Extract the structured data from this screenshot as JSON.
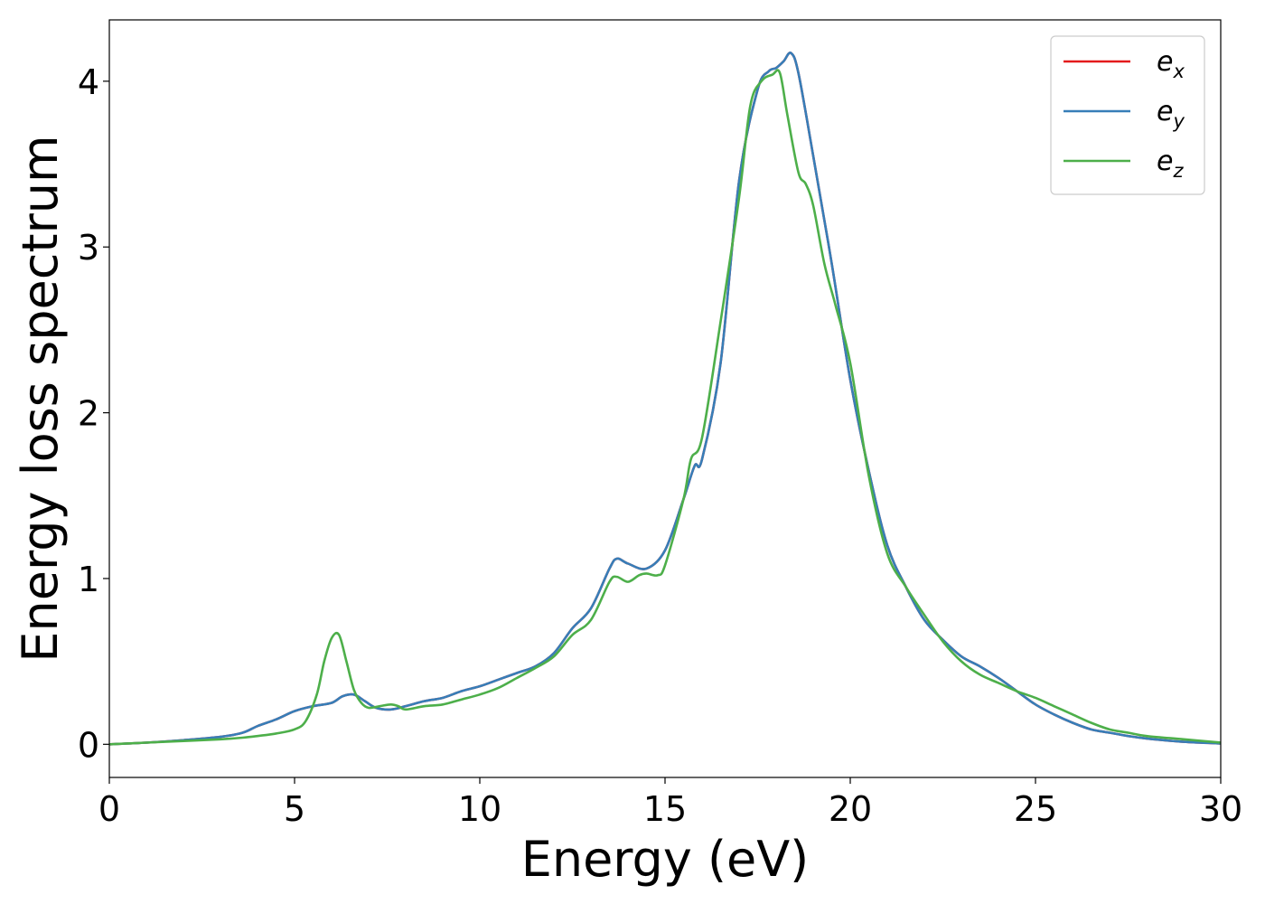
{
  "chart_data": {
    "type": "line",
    "title": "",
    "xlabel": "Energy (eV)",
    "ylabel": "Energy loss spectrum",
    "xlim": [
      0,
      30
    ],
    "ylim": [
      -0.2,
      4.37
    ],
    "xticks": [
      0,
      5,
      10,
      15,
      20,
      25,
      30
    ],
    "yticks": [
      0,
      1,
      2,
      3,
      4
    ],
    "grid": false,
    "legend_position": "top-right",
    "series": [
      {
        "name": "e_x",
        "legend": {
          "base": "e",
          "sub": "x"
        },
        "color": "#e41a1c",
        "x": [
          0,
          1,
          2,
          3,
          3.6,
          4,
          4.5,
          5,
          5.5,
          6,
          6.3,
          6.6,
          6.9,
          7.2,
          7.6,
          8,
          8.5,
          9,
          9.5,
          10,
          10.5,
          11,
          11.5,
          12,
          12.5,
          13,
          13.5,
          13.7,
          14,
          14.5,
          15,
          15.5,
          15.8,
          16,
          16.5,
          17,
          17.5,
          17.8,
          18,
          18.2,
          18.4,
          18.6,
          19,
          19.5,
          20,
          20.5,
          21,
          21.5,
          22,
          22.5,
          23,
          23.5,
          24,
          24.5,
          25,
          25.5,
          26,
          26.5,
          27,
          27.5,
          28,
          29,
          30
        ],
        "y": [
          0,
          0.01,
          0.025,
          0.045,
          0.07,
          0.11,
          0.15,
          0.2,
          0.23,
          0.25,
          0.29,
          0.3,
          0.26,
          0.22,
          0.21,
          0.23,
          0.26,
          0.28,
          0.32,
          0.35,
          0.39,
          0.43,
          0.47,
          0.55,
          0.7,
          0.82,
          1.06,
          1.12,
          1.09,
          1.06,
          1.17,
          1.48,
          1.68,
          1.72,
          2.3,
          3.4,
          3.95,
          4.06,
          4.08,
          4.12,
          4.17,
          4.05,
          3.55,
          2.9,
          2.2,
          1.65,
          1.2,
          0.95,
          0.75,
          0.63,
          0.53,
          0.47,
          0.4,
          0.32,
          0.24,
          0.18,
          0.13,
          0.09,
          0.07,
          0.05,
          0.035,
          0.015,
          0.005
        ]
      },
      {
        "name": "e_y",
        "legend": {
          "base": "e",
          "sub": "y"
        },
        "color": "#377eb8",
        "x": [
          0,
          1,
          2,
          3,
          3.6,
          4,
          4.5,
          5,
          5.5,
          6,
          6.3,
          6.6,
          6.9,
          7.2,
          7.6,
          8,
          8.5,
          9,
          9.5,
          10,
          10.5,
          11,
          11.5,
          12,
          12.5,
          13,
          13.5,
          13.7,
          14,
          14.5,
          15,
          15.5,
          15.8,
          16,
          16.5,
          17,
          17.5,
          17.8,
          18,
          18.2,
          18.4,
          18.6,
          19,
          19.5,
          20,
          20.5,
          21,
          21.5,
          22,
          22.5,
          23,
          23.5,
          24,
          24.5,
          25,
          25.5,
          26,
          26.5,
          27,
          27.5,
          28,
          29,
          30
        ],
        "y": [
          0,
          0.01,
          0.025,
          0.045,
          0.07,
          0.11,
          0.15,
          0.2,
          0.23,
          0.25,
          0.29,
          0.3,
          0.26,
          0.22,
          0.21,
          0.23,
          0.26,
          0.28,
          0.32,
          0.35,
          0.39,
          0.43,
          0.47,
          0.55,
          0.7,
          0.82,
          1.06,
          1.12,
          1.09,
          1.06,
          1.17,
          1.48,
          1.68,
          1.72,
          2.3,
          3.4,
          3.95,
          4.06,
          4.08,
          4.12,
          4.17,
          4.05,
          3.55,
          2.9,
          2.2,
          1.65,
          1.2,
          0.95,
          0.75,
          0.63,
          0.53,
          0.47,
          0.4,
          0.32,
          0.24,
          0.18,
          0.13,
          0.09,
          0.07,
          0.05,
          0.035,
          0.015,
          0.005
        ]
      },
      {
        "name": "e_z",
        "legend": {
          "base": "e",
          "sub": "z"
        },
        "color": "#4daf4a",
        "x": [
          0,
          1,
          2,
          3,
          3.6,
          4,
          4.5,
          5,
          5.3,
          5.6,
          5.8,
          6,
          6.2,
          6.4,
          6.6,
          6.8,
          7,
          7.3,
          7.6,
          7.8,
          8,
          8.5,
          9,
          9.5,
          10,
          10.5,
          11,
          11.5,
          12,
          12.5,
          13,
          13.5,
          13.7,
          14,
          14.3,
          14.5,
          14.8,
          15,
          15.5,
          15.7,
          16,
          16.5,
          17,
          17.3,
          17.6,
          17.9,
          18.1,
          18.3,
          18.6,
          18.8,
          19,
          19.3,
          19.6,
          20,
          20.5,
          21,
          21.5,
          22,
          22.5,
          23,
          23.5,
          24,
          24.5,
          25,
          25.5,
          26,
          26.5,
          27,
          27.5,
          28,
          29,
          30
        ],
        "y": [
          0,
          0.01,
          0.02,
          0.03,
          0.04,
          0.05,
          0.065,
          0.09,
          0.14,
          0.3,
          0.5,
          0.64,
          0.66,
          0.5,
          0.33,
          0.25,
          0.22,
          0.23,
          0.24,
          0.23,
          0.21,
          0.23,
          0.24,
          0.27,
          0.3,
          0.34,
          0.4,
          0.46,
          0.53,
          0.66,
          0.75,
          0.98,
          1.01,
          0.98,
          1.02,
          1.03,
          1.02,
          1.08,
          1.48,
          1.72,
          1.85,
          2.55,
          3.3,
          3.85,
          4.0,
          4.04,
          4.05,
          3.8,
          3.45,
          3.38,
          3.25,
          2.9,
          2.65,
          2.3,
          1.62,
          1.15,
          0.95,
          0.78,
          0.62,
          0.5,
          0.42,
          0.37,
          0.32,
          0.28,
          0.23,
          0.18,
          0.13,
          0.09,
          0.07,
          0.05,
          0.03,
          0.01
        ]
      }
    ]
  }
}
